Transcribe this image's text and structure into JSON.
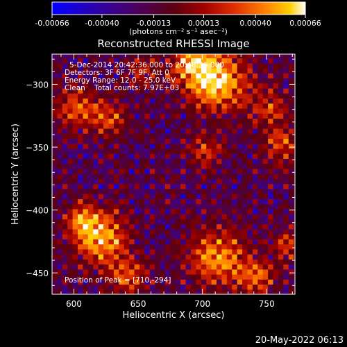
{
  "chart_data": {
    "type": "heatmap",
    "title": "Reconstructed RHESSI Image",
    "xlabel": "Heliocentric X (arcsec)",
    "ylabel": "Heliocentric Y (arcsec)",
    "xlim": [
      583,
      772
    ],
    "ylim": [
      -467,
      -276
    ],
    "xticks": [
      600,
      650,
      700,
      750
    ],
    "yticks": [
      -300,
      -350,
      -400,
      -450
    ],
    "colorbar": {
      "ticks": [
        "-0.00066",
        "-0.00040",
        "-0.00013",
        "0.00013",
        "0.00040",
        "0.00066"
      ],
      "range": [
        -0.00066,
        0.00066
      ],
      "unit_label": "(photons cm⁻² s⁻¹ asec⁻²)",
      "colors": [
        "#0000ff",
        "#2a00b0",
        "#4a0060",
        "#5a0010",
        "#a00000",
        "#e03000",
        "#ff8000",
        "#ffd000",
        "#ffffff"
      ]
    },
    "annotations": [
      "5-Dec-2014 20:42:36.000 to 20:48:36.000",
      "Detectors: 3F 6F 7F 9F, Att 0",
      "Energy Range: 12.0 - 25.0 keV",
      "Clean    Total counts: 7.97E+03",
      "Position of Peak = [710,-294]"
    ],
    "peak": [
      710,
      -294
    ],
    "timestamp": "20-May-2022 06:13"
  }
}
